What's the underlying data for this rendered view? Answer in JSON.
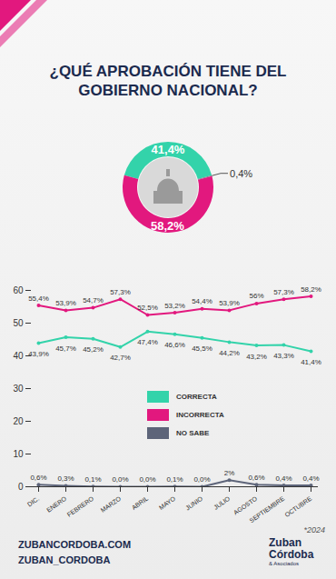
{
  "title": "¿QUÉ APROBACIÓN TIENE DEL GOBIERNO NACIONAL?",
  "chart_data": [
    {
      "type": "pie",
      "values": [
        41.4,
        0.4,
        58.2
      ],
      "value_labels": [
        "41,4%",
        "0,4%",
        "58,2%"
      ],
      "colors": [
        "#33d3aa",
        "#7d8290",
        "#e2187e"
      ],
      "data_labels": true
    },
    {
      "type": "line",
      "categories": [
        "DIC.",
        "ENERO",
        "FEBRERO",
        "MARZO",
        "ABRIL",
        "MAYO",
        "JUNIO",
        "JULIO",
        "AGOSTO",
        "SEPTIEMBRE",
        "OCTUBRE"
      ],
      "series": [
        {
          "name": "CORRECTA",
          "color": "#33d3aa",
          "values": [
            43.9,
            45.7,
            45.2,
            42.7,
            47.4,
            46.6,
            45.5,
            44.2,
            43.2,
            43.3,
            41.4
          ],
          "value_labels": [
            "43,9%",
            "45,7%",
            "45,2%",
            "42,7%",
            "47,4%",
            "46,6%",
            "45,5%",
            "44,2%",
            "43,2%",
            "43,3%",
            "41,4%"
          ]
        },
        {
          "name": "INCORRECTA",
          "color": "#e2187e",
          "values": [
            55.4,
            53.9,
            54.7,
            57.3,
            52.5,
            53.2,
            54.4,
            53.9,
            56,
            57.3,
            58.2
          ],
          "value_labels": [
            "55,4%",
            "53,9%",
            "54,7%",
            "57,3%",
            "52,5%",
            "53,2%",
            "54,4%",
            "53,9%",
            "56%",
            "57,3%",
            "58,2%"
          ]
        },
        {
          "name": "NO SABE",
          "color": "#5d6479",
          "values": [
            0.6,
            0.3,
            0.1,
            0.0,
            0.0,
            0.1,
            0.0,
            2,
            0.6,
            0.4,
            0.4
          ],
          "value_labels": [
            "0,6%",
            "0,3%",
            "0,1%",
            "0,0%",
            "0,0%",
            "0,1%",
            "0,0%",
            "2%",
            "0,6%",
            "0,4%",
            "0,4%"
          ]
        }
      ],
      "ylim": [
        0,
        60
      ],
      "yticks": [
        0,
        10,
        20,
        30,
        40,
        50,
        60
      ],
      "grid": false,
      "data_labels": true,
      "legend": "center"
    }
  ],
  "footer": {
    "website": "ZUBANCORDOBA.COM",
    "twitter": "ZUBAN_CORDOBA",
    "note": "*2024",
    "logo": "Zuban Córdoba",
    "logo_sub": "& Asociados"
  }
}
